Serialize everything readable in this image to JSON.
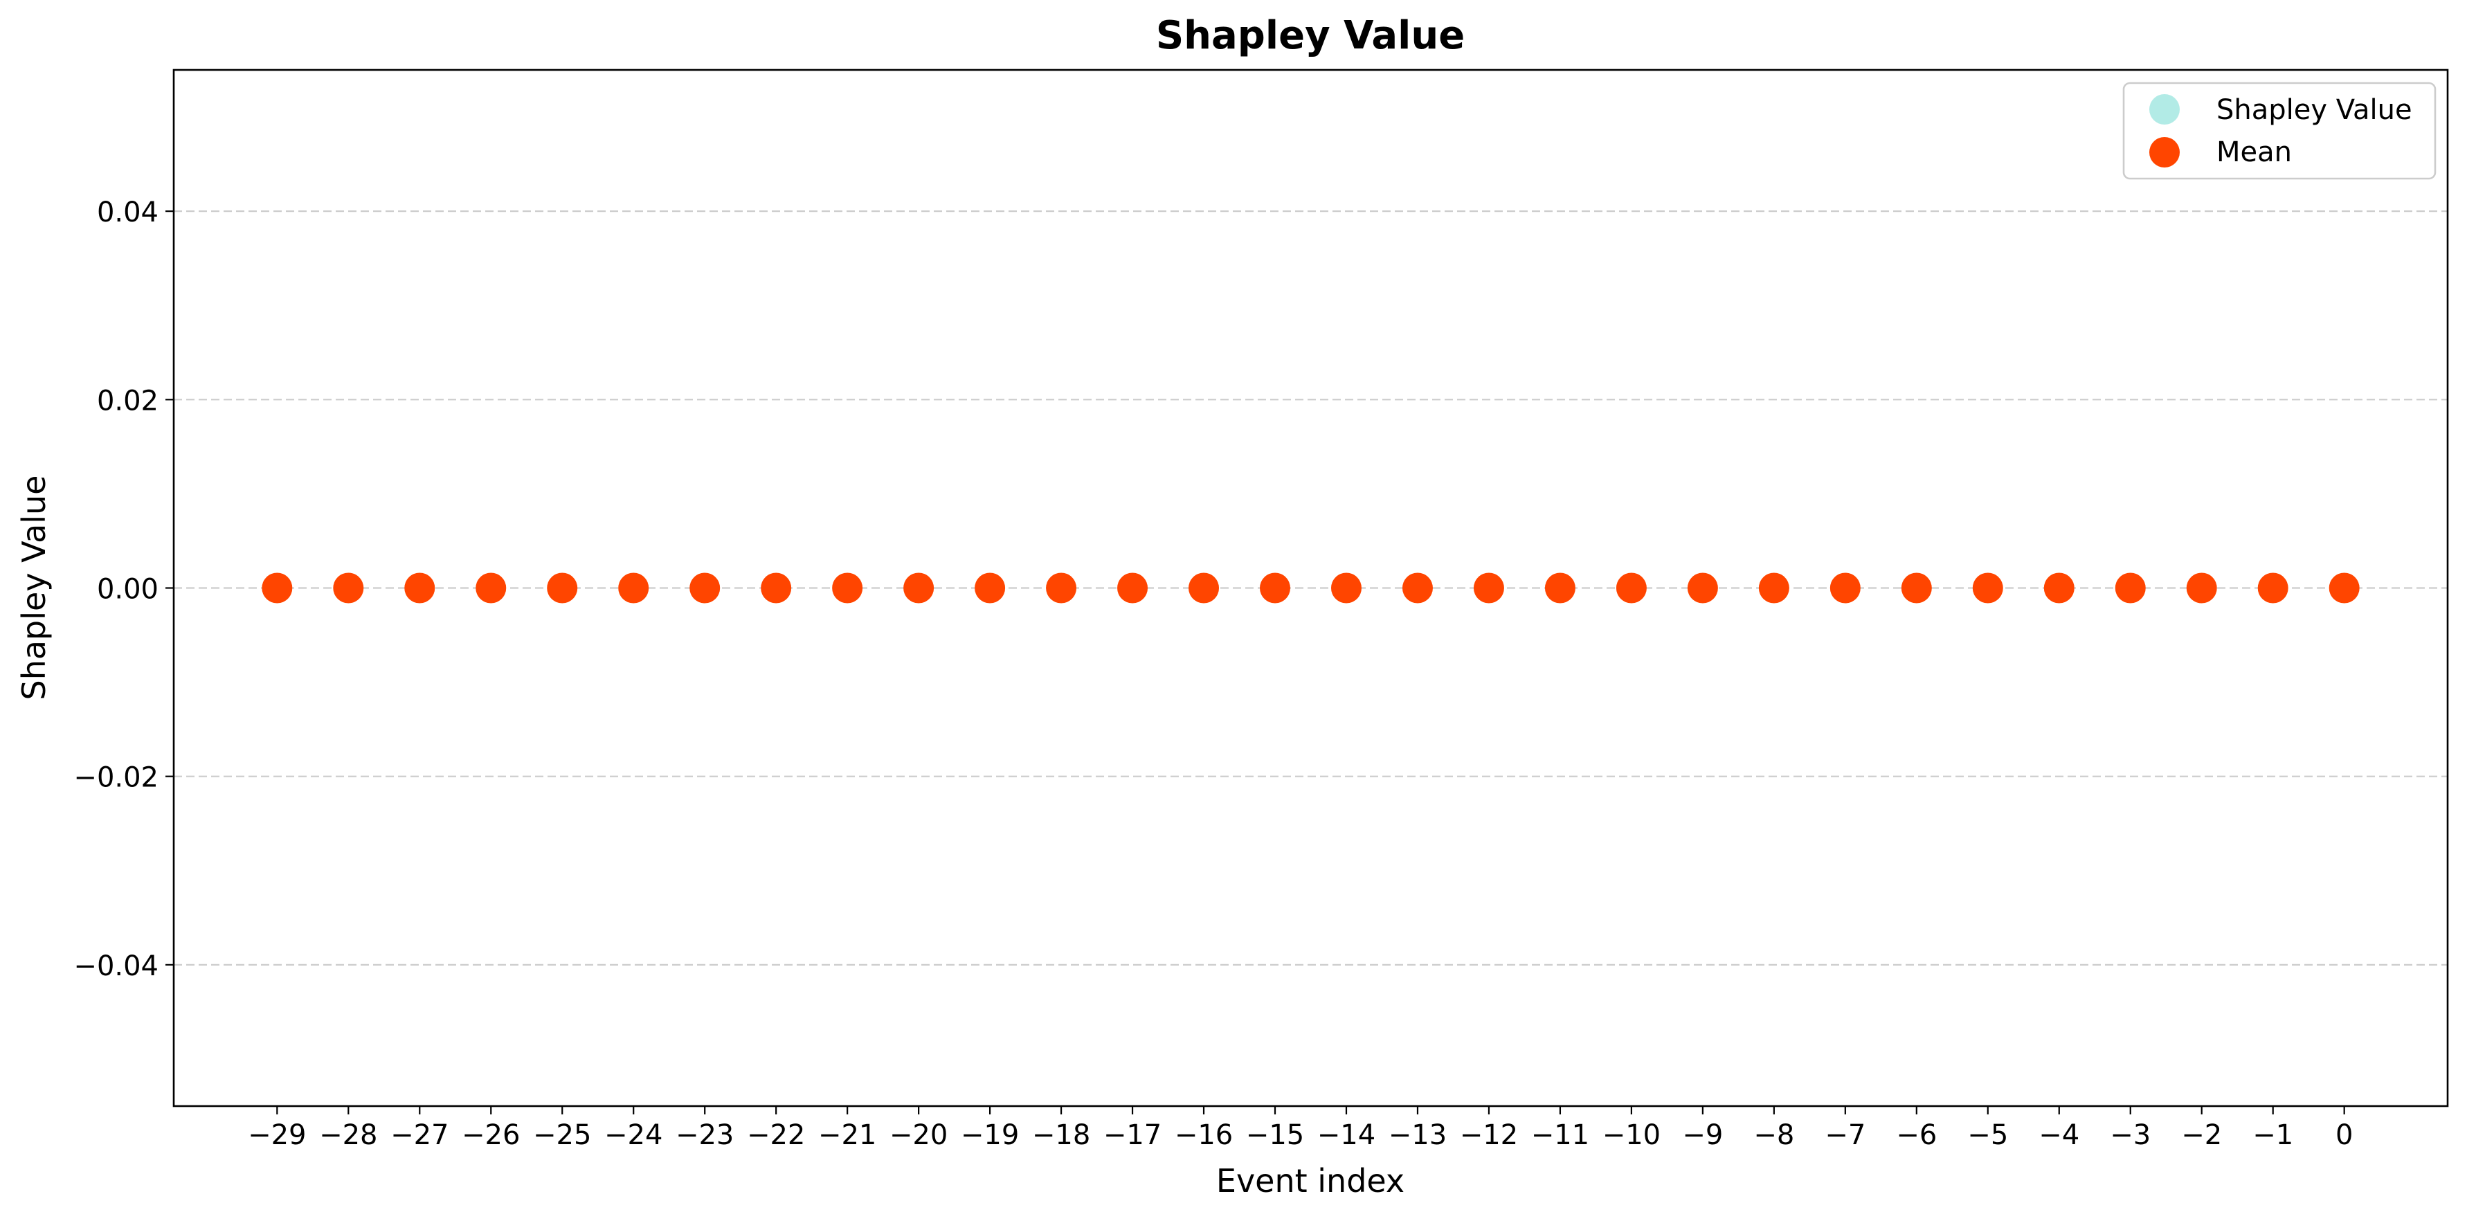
{
  "chart_data": {
    "type": "scatter",
    "title": "Shapley Value",
    "xlabel": "Event index",
    "ylabel": "Shapley Value",
    "xlim": [
      -30.45,
      1.45
    ],
    "ylim": [
      -0.055,
      0.055
    ],
    "x_ticks": [
      -29,
      -28,
      -27,
      -26,
      -25,
      -24,
      -23,
      -22,
      -21,
      -20,
      -19,
      -18,
      -17,
      -16,
      -15,
      -14,
      -13,
      -12,
      -11,
      -10,
      -9,
      -8,
      -7,
      -6,
      -5,
      -4,
      -3,
      -2,
      -1,
      0
    ],
    "x_tick_labels": [
      "−29",
      "−28",
      "−27",
      "−26",
      "−25",
      "−24",
      "−23",
      "−22",
      "−21",
      "−20",
      "−19",
      "−18",
      "−17",
      "−16",
      "−15",
      "−14",
      "−13",
      "−12",
      "−11",
      "−10",
      "−9",
      "−8",
      "−7",
      "−6",
      "−5",
      "−4",
      "−3",
      "−2",
      "−1",
      "0"
    ],
    "y_ticks": [
      -0.04,
      -0.02,
      0.0,
      0.02,
      0.04
    ],
    "y_tick_labels": [
      "−0.04",
      "−0.02",
      "0.00",
      "0.02",
      "0.04"
    ],
    "grid": "horizontal dashed",
    "legend_position": "top-right",
    "series": [
      {
        "name": "Shapley Value",
        "color": "#b2ebe6",
        "x": [],
        "y": []
      },
      {
        "name": "Mean",
        "color": "#ff4500",
        "x": [
          -29,
          -28,
          -27,
          -26,
          -25,
          -24,
          -23,
          -22,
          -21,
          -20,
          -19,
          -18,
          -17,
          -16,
          -15,
          -14,
          -13,
          -12,
          -11,
          -10,
          -9,
          -8,
          -7,
          -6,
          -5,
          -4,
          -3,
          -2,
          -1,
          0
        ],
        "y": [
          0,
          0,
          0,
          0,
          0,
          0,
          0,
          0,
          0,
          0,
          0,
          0,
          0,
          0,
          0,
          0,
          0,
          0,
          0,
          0,
          0,
          0,
          0,
          0,
          0,
          0,
          0,
          0,
          0,
          0
        ]
      }
    ]
  }
}
